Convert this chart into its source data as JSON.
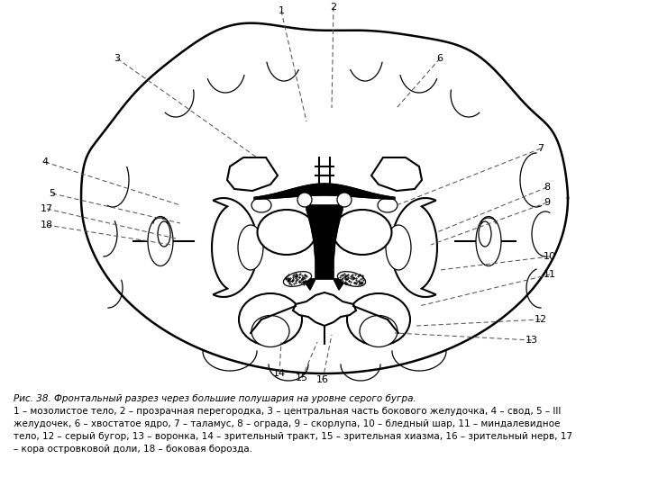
{
  "title": "Рис. 38. Фронтальный разрез через большие полушария на уровне серого бугра.",
  "cap1": "1 – мозолистое тело, 2 – прозрачная перегородка, 3 – центральная часть бокового желудочка, 4 – свод, 5 – III",
  "cap2": "желудочек, 6 – хвостатое ядро, 7 – таламус, 8 – ограда, 9 – скорлупа, 10 – бледный шар, 11 – миндалевидное",
  "cap3": "тело, 12 – серый бугор, 13 – воронка, 14 – зрительный тракт, 15 – зрительная хиазма, 16 – зрительный нерв, 17",
  "cap4": "– кора островковой доли, 18 – боковая борозда.",
  "bg": "#ffffff",
  "lc": "#000000"
}
